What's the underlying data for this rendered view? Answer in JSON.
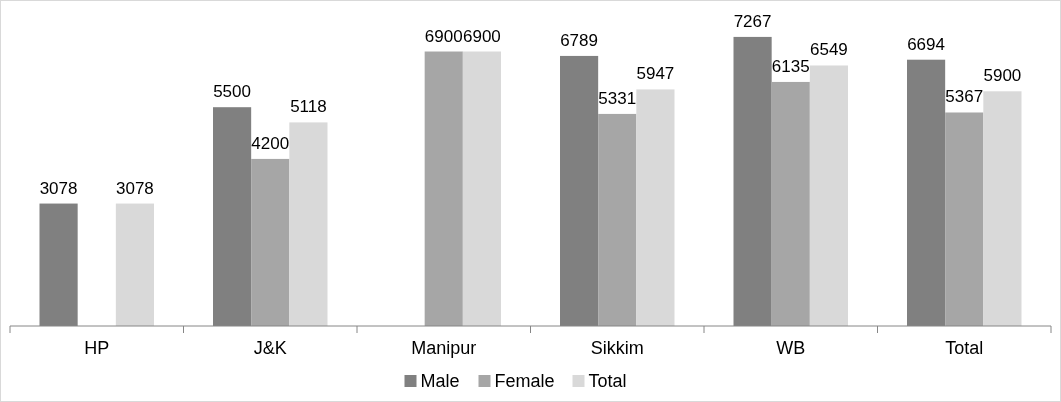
{
  "chart_data": {
    "type": "bar",
    "categories": [
      "HP",
      "J&K",
      "Manipur",
      "Sikkim",
      "WB",
      "Total"
    ],
    "series": [
      {
        "name": "Male",
        "color": "#808080",
        "values": [
          3078,
          5500,
          null,
          6789,
          7267,
          6694
        ]
      },
      {
        "name": "Female",
        "color": "#a6a6a6",
        "values": [
          null,
          4200,
          6900,
          5331,
          6135,
          5367
        ]
      },
      {
        "name": "Total",
        "color": "#d9d9d9",
        "values": [
          3078,
          5118,
          6900,
          5947,
          6549,
          5900
        ]
      }
    ],
    "tick_labels": "x",
    "data_labels": true,
    "legend": "bottom"
  }
}
